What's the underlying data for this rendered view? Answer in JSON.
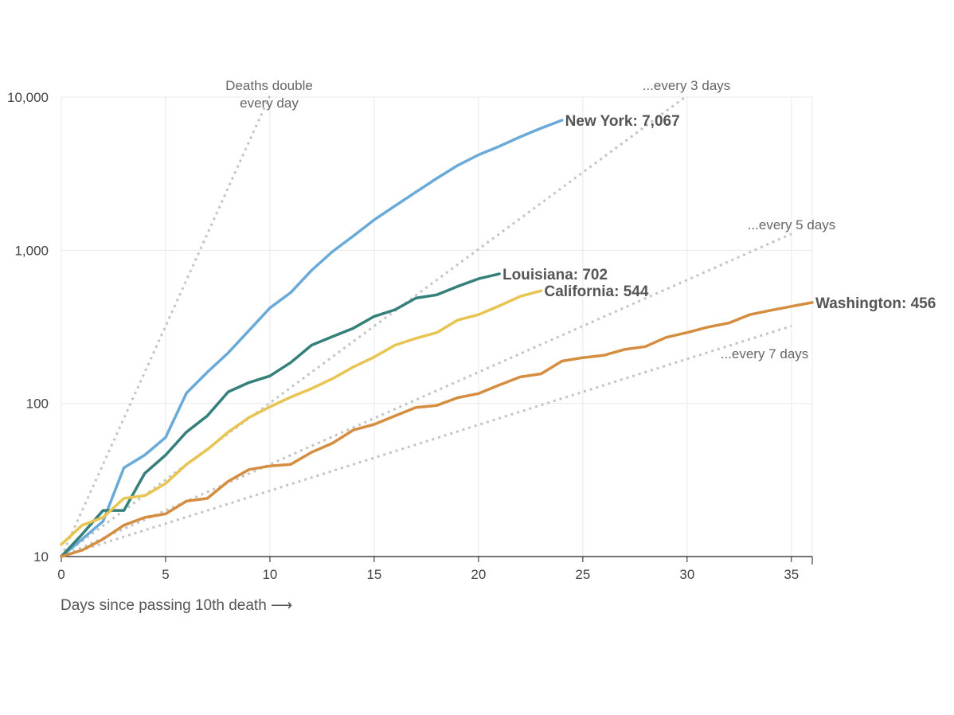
{
  "chart_data": {
    "type": "line",
    "title": "",
    "xlabel": "Days since passing 10th death ⟶",
    "ylabel": "",
    "x_scale": "linear",
    "y_scale": "log",
    "xlim": [
      0,
      36
    ],
    "ylim": [
      10,
      10000
    ],
    "x_ticks": [
      0,
      5,
      10,
      15,
      20,
      25,
      30,
      35
    ],
    "y_ticks": [
      10,
      100,
      1000,
      10000
    ],
    "y_tick_labels": [
      "10",
      "100",
      "1,000",
      "10,000"
    ],
    "grid": true,
    "series": [
      {
        "name": "New York",
        "end_label": "New York: 7,067",
        "color": "#6aaad8",
        "values": [
          10,
          13,
          17,
          38,
          46,
          60,
          117,
          160,
          214,
          300,
          420,
          530,
          740,
          980,
          1240,
          1580,
          1950,
          2400,
          2950,
          3580,
          4200,
          4780,
          5500,
          6270,
          7067
        ]
      },
      {
        "name": "Louisiana",
        "end_label": "Louisiana: 702",
        "color": "#35807a",
        "values": [
          10,
          14,
          20,
          20,
          35,
          46,
          65,
          83,
          119,
          137,
          151,
          185,
          240,
          273,
          310,
          370,
          409,
          487,
          512,
          581,
          652,
          702
        ]
      },
      {
        "name": "California",
        "end_label": "California: 544",
        "color": "#e8c552",
        "values": [
          12,
          16,
          18,
          24,
          25,
          30,
          40,
          50,
          65,
          81,
          95,
          110,
          125,
          145,
          173,
          201,
          240,
          266,
          290,
          350,
          380,
          434,
          500,
          544
        ]
      },
      {
        "name": "Washington",
        "end_label": "Washington: 456",
        "color": "#d58d40",
        "values": [
          10,
          11,
          13,
          16,
          18,
          19,
          23,
          24,
          31,
          37,
          39,
          40,
          48,
          55,
          67,
          73,
          83,
          94,
          97,
          109,
          116,
          132,
          149,
          156,
          189,
          199,
          206,
          225,
          235,
          270,
          290,
          315,
          335,
          380,
          405,
          430,
          456
        ]
      }
    ],
    "reference_lines": [
      {
        "label_lines": [
          "Deaths double",
          "every day"
        ],
        "doubling_days": 1,
        "x_end": 10
      },
      {
        "label_lines": [
          "...every 3 days"
        ],
        "doubling_days": 3,
        "x_end": 30
      },
      {
        "label_lines": [
          "...every 5 days"
        ],
        "doubling_days": 5,
        "x_end": 35
      },
      {
        "label_lines": [
          "...every 7 days"
        ],
        "doubling_days": 7,
        "x_end": 35
      }
    ]
  }
}
